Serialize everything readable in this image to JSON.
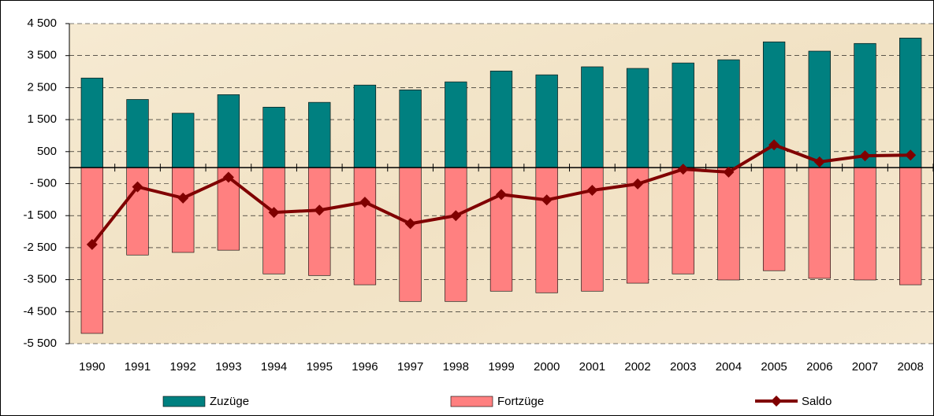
{
  "chart_data": {
    "type": "bar-line",
    "categories": [
      "1990",
      "1991",
      "1992",
      "1993",
      "1994",
      "1995",
      "1996",
      "1997",
      "1998",
      "1999",
      "2000",
      "2001",
      "2002",
      "2003",
      "2004",
      "2005",
      "2006",
      "2007",
      "2008"
    ],
    "series": [
      {
        "name": "Zuzüge",
        "type": "bar",
        "color": "#008080",
        "values": [
          2800,
          2130,
          1700,
          2280,
          1890,
          2040,
          2580,
          2430,
          2680,
          3020,
          2900,
          3150,
          3100,
          3270,
          3370,
          3930,
          3640,
          3880,
          4050
        ]
      },
      {
        "name": "Fortzüge",
        "type": "bar",
        "color": "#ff8080",
        "values": [
          -5180,
          -2730,
          -2650,
          -2580,
          -3320,
          -3370,
          -3660,
          -4180,
          -4180,
          -3860,
          -3910,
          -3860,
          -3610,
          -3320,
          -3510,
          -3220,
          -3460,
          -3510,
          -3660
        ]
      },
      {
        "name": "Saldo",
        "type": "line",
        "color": "#800000",
        "values": [
          -2400,
          -600,
          -950,
          -300,
          -1400,
          -1330,
          -1080,
          -1750,
          -1500,
          -840,
          -1010,
          -710,
          -510,
          -50,
          -140,
          710,
          180,
          370,
          390
        ]
      }
    ],
    "ylim": [
      -5500,
      4500
    ],
    "yticks": [
      {
        "value": 4500,
        "label": "4 500"
      },
      {
        "value": 3500,
        "label": "3 500"
      },
      {
        "value": 2500,
        "label": "2 500"
      },
      {
        "value": 1500,
        "label": "1 500"
      },
      500,
      {
        "value": -500,
        "label": "- 500"
      },
      {
        "value": -1500,
        "label": "-1 500"
      },
      {
        "value": -2500,
        "label": "-2 500"
      },
      {
        "value": -3500,
        "label": "-3 500"
      },
      {
        "value": -4500,
        "label": "-4 500"
      },
      {
        "value": -5500,
        "label": "-5 500"
      }
    ],
    "grid": true
  }
}
